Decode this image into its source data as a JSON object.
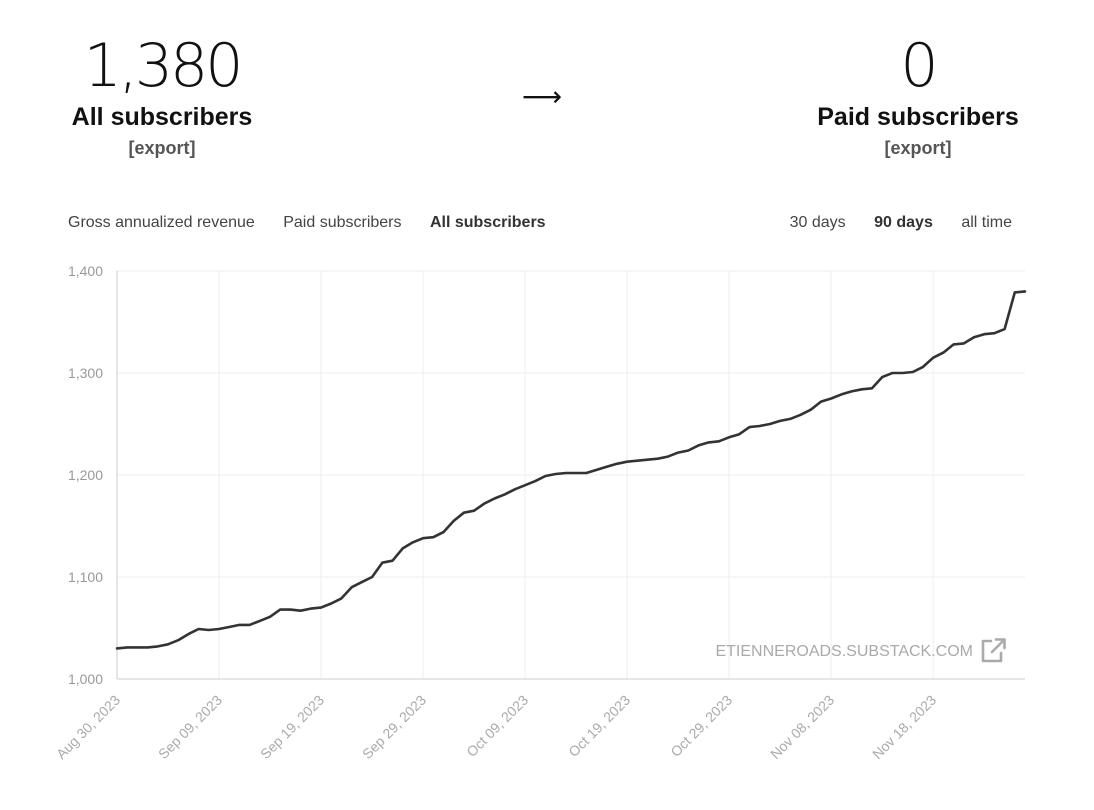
{
  "stats": {
    "all": {
      "value": "1,380",
      "label": "All subscribers",
      "export": "[export]"
    },
    "arrow": "⟶",
    "paid": {
      "value": "0",
      "label": "Paid subscribers",
      "export": "[export]"
    }
  },
  "metric_tabs": [
    {
      "label": "Gross annualized revenue",
      "active": false
    },
    {
      "label": "Paid subscribers",
      "active": false
    },
    {
      "label": "All subscribers",
      "active": true
    }
  ],
  "range_tabs": [
    {
      "label": "30 days",
      "active": false
    },
    {
      "label": "90 days",
      "active": true
    },
    {
      "label": "all time",
      "active": false
    }
  ],
  "watermark": {
    "text": "ETIENNEROADS.SUBSTACK.COM",
    "icon": "external-link-icon"
  },
  "colors": {
    "line": "#333333",
    "grid": "#eeeeee",
    "axis": "#cccccc"
  },
  "chart_data": {
    "type": "line",
    "title": "",
    "xlabel": "",
    "ylabel": "",
    "ylim": [
      1000,
      1400
    ],
    "yticks": [
      1000,
      1100,
      1200,
      1300,
      1400
    ],
    "ytick_labels": [
      "1,000",
      "1,100",
      "1,200",
      "1,300",
      "1,400"
    ],
    "xlim": [
      "2023-08-30",
      "2023-11-27"
    ],
    "xticks": [
      "2023-08-30",
      "2023-09-09",
      "2023-09-19",
      "2023-09-29",
      "2023-10-09",
      "2023-10-19",
      "2023-10-29",
      "2023-11-08",
      "2023-11-18"
    ],
    "xtick_labels": [
      "Aug 30, 2023",
      "Sep 09, 2023",
      "Sep 19, 2023",
      "Sep 29, 2023",
      "Oct 09, 2023",
      "Oct 19, 2023",
      "Oct 29, 2023",
      "Nov 08, 2023",
      "Nov 18, 2023"
    ],
    "grid": true,
    "series": [
      {
        "x": [
          "2023-08-30",
          "2023-08-31",
          "2023-09-01",
          "2023-09-02",
          "2023-09-03",
          "2023-09-04",
          "2023-09-05",
          "2023-09-06",
          "2023-09-07",
          "2023-09-08",
          "2023-09-09",
          "2023-09-10",
          "2023-09-11",
          "2023-09-12",
          "2023-09-13",
          "2023-09-14",
          "2023-09-15",
          "2023-09-16",
          "2023-09-17",
          "2023-09-18",
          "2023-09-19",
          "2023-09-20",
          "2023-09-21",
          "2023-09-22",
          "2023-09-23",
          "2023-09-24",
          "2023-09-25",
          "2023-09-26",
          "2023-09-27",
          "2023-09-28",
          "2023-09-29",
          "2023-09-30",
          "2023-10-01",
          "2023-10-02",
          "2023-10-03",
          "2023-10-04",
          "2023-10-05",
          "2023-10-06",
          "2023-10-07",
          "2023-10-08",
          "2023-10-09",
          "2023-10-10",
          "2023-10-11",
          "2023-10-12",
          "2023-10-13",
          "2023-10-14",
          "2023-10-15",
          "2023-10-16",
          "2023-10-17",
          "2023-10-18",
          "2023-10-19",
          "2023-10-20",
          "2023-10-21",
          "2023-10-22",
          "2023-10-23",
          "2023-10-24",
          "2023-10-25",
          "2023-10-26",
          "2023-10-27",
          "2023-10-28",
          "2023-10-29",
          "2023-10-30",
          "2023-10-31",
          "2023-11-01",
          "2023-11-02",
          "2023-11-03",
          "2023-11-04",
          "2023-11-05",
          "2023-11-06",
          "2023-11-07",
          "2023-11-08",
          "2023-11-09",
          "2023-11-10",
          "2023-11-11",
          "2023-11-12",
          "2023-11-13",
          "2023-11-14",
          "2023-11-15",
          "2023-11-16",
          "2023-11-17",
          "2023-11-18",
          "2023-11-19",
          "2023-11-20",
          "2023-11-21",
          "2023-11-22",
          "2023-11-23",
          "2023-11-24",
          "2023-11-25",
          "2023-11-26",
          "2023-11-27"
        ],
        "values": [
          1030,
          1031,
          1031,
          1031,
          1032,
          1034,
          1038,
          1044,
          1049,
          1048,
          1049,
          1051,
          1053,
          1053,
          1057,
          1061,
          1068,
          1068,
          1067,
          1069,
          1070,
          1074,
          1079,
          1090,
          1095,
          1100,
          1114,
          1116,
          1128,
          1134,
          1138,
          1139,
          1144,
          1155,
          1163,
          1165,
          1172,
          1177,
          1181,
          1186,
          1190,
          1194,
          1199,
          1201,
          1202,
          1202,
          1202,
          1205,
          1208,
          1211,
          1213,
          1214,
          1215,
          1216,
          1218,
          1222,
          1224,
          1229,
          1232,
          1233,
          1237,
          1240,
          1247,
          1248,
          1250,
          1253,
          1255,
          1259,
          1264,
          1272,
          1275,
          1279,
          1282,
          1284,
          1285,
          1296,
          1300,
          1300,
          1301,
          1306,
          1315,
          1320,
          1328,
          1329,
          1335,
          1338,
          1339,
          1343,
          1379,
          1380
        ]
      }
    ]
  }
}
